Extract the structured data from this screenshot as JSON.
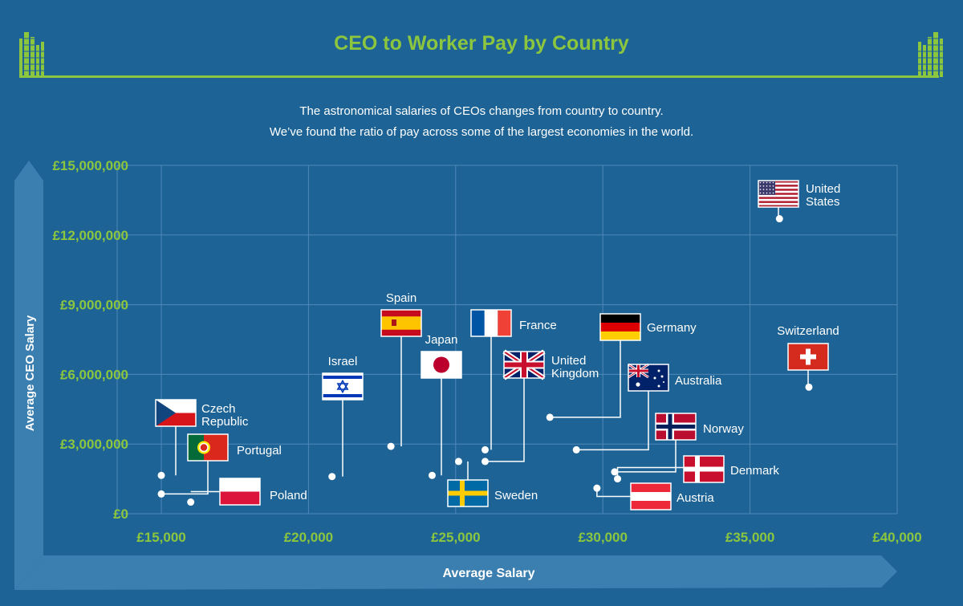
{
  "header": {
    "title": "CEO to Worker Pay by Country",
    "subtitle_lines": [
      "The astronomical salaries of CEOs changes from country to country.",
      "We’ve found the ratio of pay across some of the largest economies in the world."
    ]
  },
  "colors": {
    "background": "#1d6395",
    "accent_green": "#8cc63f",
    "arrow_band": "#3b7fb0",
    "grid": "#4f88b8",
    "leader": "#ffffff"
  },
  "chart_data": {
    "type": "scatter",
    "title": "CEO to Worker Pay by Country",
    "xlabel": "Average Salary",
    "ylabel": "Average CEO Salary",
    "xlim": [
      13500,
      40000
    ],
    "ylim": [
      0,
      15000000
    ],
    "x_ticks": [
      15000,
      20000,
      25000,
      30000,
      35000,
      40000
    ],
    "x_tick_labels": [
      "£15,000",
      "£20,000",
      "£25,000",
      "£30,000",
      "£35,000",
      "£40,000"
    ],
    "y_ticks": [
      0,
      3000000,
      6000000,
      9000000,
      12000000,
      15000000
    ],
    "y_tick_labels": [
      "£0",
      "£3,000,000",
      "£6,000,000",
      "£9,000,000",
      "£12,000,000",
      "£15,000,000"
    ],
    "grid": true,
    "points": [
      {
        "country": "Czech Republic",
        "flag": "czech-republic",
        "x": 15000,
        "y": 1650000
      },
      {
        "country": "Portugal",
        "flag": "portugal",
        "x": 15000,
        "y": 850000
      },
      {
        "country": "Poland",
        "flag": "poland",
        "x": 16000,
        "y": 500000
      },
      {
        "country": "Israel",
        "flag": "israel",
        "x": 20800,
        "y": 1600000
      },
      {
        "country": "Spain",
        "flag": "spain",
        "x": 22800,
        "y": 2900000
      },
      {
        "country": "Japan",
        "flag": "japan",
        "x": 24200,
        "y": 1650000
      },
      {
        "country": "Sweden",
        "flag": "sweden",
        "x": 25100,
        "y": 2250000
      },
      {
        "country": "France",
        "flag": "france",
        "x": 26000,
        "y": 2750000
      },
      {
        "country": "United Kingdom",
        "flag": "united-kingdom",
        "x": 26000,
        "y": 2250000
      },
      {
        "country": "Germany",
        "flag": "germany",
        "x": 28200,
        "y": 4150000
      },
      {
        "country": "Australia",
        "flag": "australia",
        "x": 29100,
        "y": 2750000
      },
      {
        "country": "Norway",
        "flag": "norway",
        "x": 30400,
        "y": 1800000
      },
      {
        "country": "Denmark",
        "flag": "denmark",
        "x": 30500,
        "y": 1500000
      },
      {
        "country": "Austria",
        "flag": "austria",
        "x": 29800,
        "y": 1100000
      },
      {
        "country": "United States",
        "flag": "united-states",
        "x": 36000,
        "y": 12700000
      },
      {
        "country": "Switzerland",
        "flag": "switzerland",
        "x": 37000,
        "y": 5450000
      }
    ]
  }
}
